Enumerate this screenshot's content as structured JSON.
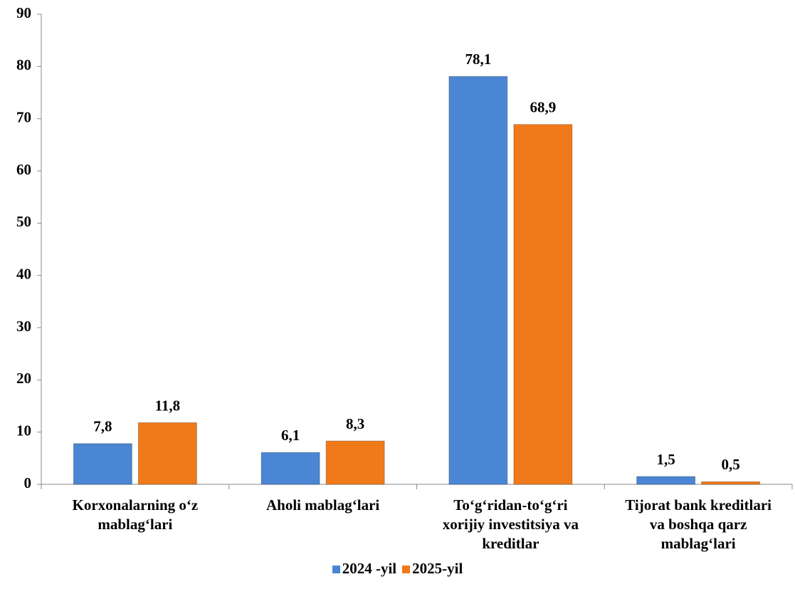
{
  "chart_data": {
    "type": "bar",
    "categories": [
      "Korxonalarning o‘z\nmablag‘lari",
      "Aholi mablag‘lari",
      "To‘g‘ridan-to‘g‘ri\nxorijiy investitsiya  va\nkreditlar",
      "Tijorat bank kreditlari\nva boshqa  qarz\nmablag‘lari"
    ],
    "series": [
      {
        "name": "2024 -yil",
        "color": "#4a86d4",
        "values": [
          7.8,
          6.1,
          78.1,
          1.5
        ],
        "value_labels": [
          "7,8",
          "6,1",
          "78,1",
          "1,5"
        ]
      },
      {
        "name": "2025-yil",
        "color": "#f07a1a",
        "values": [
          11.8,
          8.3,
          68.9,
          0.5
        ],
        "value_labels": [
          "11,8",
          "8,3",
          "68,9",
          "0,5"
        ]
      }
    ],
    "ylim": [
      0,
      90
    ],
    "yticks": [
      0,
      10,
      20,
      30,
      40,
      50,
      60,
      70,
      80,
      90
    ],
    "grid": false,
    "legend": "bottom"
  }
}
